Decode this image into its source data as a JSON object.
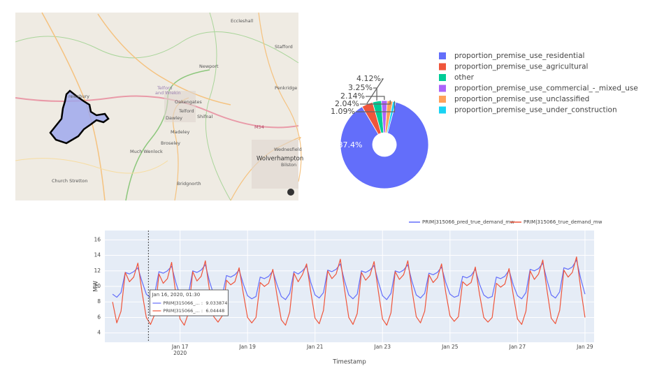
{
  "map": {
    "places": [
      "Eccleshall",
      "Stafford",
      "Newport",
      "Telford",
      "and Wrekin",
      "Penkridge",
      "Oakengates",
      "Telford",
      "Shifnal",
      "Dawley",
      "Madeley",
      "M54",
      "Broseley",
      "Much Wenlock",
      "Wednesfield",
      "Wolverhampton",
      "Bilston",
      "Church Stretton",
      "Bridgnorth",
      "rewsbury"
    ]
  },
  "chart_data": [
    {
      "type": "pie",
      "labels": [
        "proportion_premise_use_residential",
        "proportion_premise_use_agricultural",
        "other",
        "proportion_premise_use_commercial_-_mixed_use",
        "proportion_premise_use_unclassified",
        "proportion_premise_use_under_construction"
      ],
      "values": [
        87.4,
        4.12,
        3.25,
        2.14,
        2.04,
        1.09
      ],
      "value_labels": [
        "87.4%",
        "4.12%",
        "3.25%",
        "2.14%",
        "2.04%",
        "1.09%"
      ],
      "colors": [
        "#636efa",
        "#ef553b",
        "#00cc96",
        "#ab63fa",
        "#ffa15a",
        "#19d3f3"
      ],
      "hole": true
    },
    {
      "type": "line",
      "x_label": "Timestamp",
      "y_label": "MW",
      "x": [
        "2020-01-15T00:00",
        "2020-01-15T03:00",
        "2020-01-15T06:00",
        "2020-01-15T09:00",
        "2020-01-15T12:00",
        "2020-01-15T15:00",
        "2020-01-15T18:00",
        "2020-01-15T21:00",
        "2020-01-16T00:00",
        "2020-01-16T03:00",
        "2020-01-16T06:00",
        "2020-01-16T09:00",
        "2020-01-16T12:00",
        "2020-01-16T15:00",
        "2020-01-16T18:00",
        "2020-01-16T21:00",
        "2020-01-17T00:00",
        "2020-01-17T03:00",
        "2020-01-17T06:00",
        "2020-01-17T09:00",
        "2020-01-17T12:00",
        "2020-01-17T15:00",
        "2020-01-17T18:00",
        "2020-01-17T21:00",
        "2020-01-18T00:00",
        "2020-01-18T03:00",
        "2020-01-18T06:00",
        "2020-01-18T09:00",
        "2020-01-18T12:00",
        "2020-01-18T15:00",
        "2020-01-18T18:00",
        "2020-01-18T21:00",
        "2020-01-19T00:00",
        "2020-01-19T03:00",
        "2020-01-19T06:00",
        "2020-01-19T09:00",
        "2020-01-19T12:00",
        "2020-01-19T15:00",
        "2020-01-19T18:00",
        "2020-01-19T21:00",
        "2020-01-20T00:00",
        "2020-01-20T03:00",
        "2020-01-20T06:00",
        "2020-01-20T09:00",
        "2020-01-20T12:00",
        "2020-01-20T15:00",
        "2020-01-20T18:00",
        "2020-01-20T21:00",
        "2020-01-21T00:00",
        "2020-01-21T03:00",
        "2020-01-21T06:00",
        "2020-01-21T09:00",
        "2020-01-21T12:00",
        "2020-01-21T15:00",
        "2020-01-21T18:00",
        "2020-01-21T21:00",
        "2020-01-22T00:00",
        "2020-01-22T03:00",
        "2020-01-22T06:00",
        "2020-01-22T09:00",
        "2020-01-22T12:00",
        "2020-01-22T15:00",
        "2020-01-22T18:00",
        "2020-01-22T21:00",
        "2020-01-23T00:00",
        "2020-01-23T03:00",
        "2020-01-23T06:00",
        "2020-01-23T09:00",
        "2020-01-23T12:00",
        "2020-01-23T15:00",
        "2020-01-23T18:00",
        "2020-01-23T21:00",
        "2020-01-24T00:00",
        "2020-01-24T03:00",
        "2020-01-24T06:00",
        "2020-01-24T09:00",
        "2020-01-24T12:00",
        "2020-01-24T15:00",
        "2020-01-24T18:00",
        "2020-01-24T21:00",
        "2020-01-25T00:00",
        "2020-01-25T03:00",
        "2020-01-25T06:00",
        "2020-01-25T09:00",
        "2020-01-25T12:00",
        "2020-01-25T15:00",
        "2020-01-25T18:00",
        "2020-01-25T21:00",
        "2020-01-26T00:00",
        "2020-01-26T03:00",
        "2020-01-26T06:00",
        "2020-01-26T09:00",
        "2020-01-26T12:00",
        "2020-01-26T15:00",
        "2020-01-26T18:00",
        "2020-01-26T21:00",
        "2020-01-27T00:00",
        "2020-01-27T03:00",
        "2020-01-27T06:00",
        "2020-01-27T09:00",
        "2020-01-27T12:00",
        "2020-01-27T15:00",
        "2020-01-27T18:00",
        "2020-01-27T21:00",
        "2020-01-28T00:00",
        "2020-01-28T03:00",
        "2020-01-28T06:00",
        "2020-01-28T09:00",
        "2020-01-28T12:00",
        "2020-01-28T15:00",
        "2020-01-28T18:00",
        "2020-01-28T21:00",
        "2020-01-29T00:00"
      ],
      "series": [
        {
          "name": "PRIM|315066_pred_true_demand_mw",
          "color": "#636efa",
          "values": [
            9.0,
            8.6,
            9.2,
            11.8,
            11.6,
            11.9,
            12.4,
            10.6,
            9.0,
            8.5,
            9.1,
            11.9,
            11.7,
            12.0,
            12.6,
            10.5,
            8.8,
            8.4,
            9.0,
            12.0,
            11.8,
            12.1,
            12.8,
            10.6,
            8.9,
            8.5,
            8.8,
            11.4,
            11.2,
            11.5,
            12.1,
            10.3,
            8.8,
            8.4,
            8.7,
            11.2,
            11.0,
            11.3,
            12.0,
            10.2,
            8.7,
            8.3,
            9.1,
            11.9,
            11.6,
            12.0,
            12.6,
            10.5,
            8.9,
            8.5,
            9.2,
            12.1,
            11.9,
            12.2,
            12.9,
            10.7,
            8.9,
            8.4,
            9.0,
            12.0,
            11.8,
            12.1,
            12.7,
            10.6,
            8.8,
            8.3,
            9.1,
            12.0,
            11.8,
            12.1,
            12.8,
            10.6,
            8.9,
            8.5,
            9.1,
            11.7,
            11.5,
            11.8,
            12.5,
            10.5,
            9.0,
            8.6,
            8.8,
            11.3,
            11.1,
            11.4,
            12.2,
            10.3,
            8.9,
            8.5,
            8.7,
            11.2,
            11.0,
            11.3,
            12.1,
            10.2,
            8.8,
            8.4,
            9.2,
            12.2,
            12.0,
            12.3,
            13.0,
            10.8,
            8.9,
            8.5,
            9.3,
            12.4,
            12.2,
            12.5,
            13.4,
            11.0,
            9.0
          ]
        },
        {
          "name": "PRIM|315066_true_demand_mw",
          "color": "#ef553b",
          "values": [
            8.0,
            5.3,
            6.8,
            11.8,
            10.6,
            11.2,
            13.0,
            9.2,
            6.0,
            5.1,
            6.4,
            11.6,
            10.4,
            11.0,
            13.1,
            9.0,
            5.8,
            5.0,
            6.6,
            11.9,
            10.7,
            11.3,
            13.3,
            9.4,
            6.1,
            5.4,
            6.2,
            10.8,
            10.2,
            10.6,
            12.4,
            9.1,
            6.0,
            5.3,
            6.0,
            10.5,
            10.0,
            10.4,
            12.2,
            8.8,
            5.7,
            5.0,
            6.7,
            11.7,
            10.6,
            11.5,
            12.9,
            9.3,
            5.9,
            5.2,
            6.9,
            12.0,
            11.0,
            11.6,
            13.5,
            9.6,
            6.0,
            5.1,
            6.5,
            11.8,
            10.8,
            11.4,
            13.2,
            9.4,
            5.8,
            5.0,
            6.6,
            11.9,
            10.9,
            11.5,
            13.3,
            9.5,
            6.1,
            5.3,
            6.8,
            11.5,
            10.5,
            11.1,
            12.9,
            9.2,
            6.2,
            5.5,
            6.1,
            10.6,
            10.1,
            10.5,
            12.5,
            9.0,
            6.0,
            5.4,
            6.0,
            10.4,
            9.9,
            10.3,
            12.3,
            8.9,
            5.8,
            5.1,
            6.8,
            12.0,
            10.9,
            11.6,
            13.4,
            9.5,
            5.9,
            5.2,
            6.9,
            12.1,
            11.2,
            11.8,
            13.8,
            9.7,
            6.0
          ]
        }
      ],
      "xlim": [
        "2020-01-14T18:30",
        "2020-01-29T06:30"
      ],
      "xticks": [
        {
          "value": "2020-01-17T00:00",
          "label": "Jan 17",
          "sublabel": "2020"
        },
        {
          "value": "2020-01-19T00:00",
          "label": "Jan 19"
        },
        {
          "value": "2020-01-21T00:00",
          "label": "Jan 21"
        },
        {
          "value": "2020-01-23T00:00",
          "label": "Jan 23"
        },
        {
          "value": "2020-01-25T00:00",
          "label": "Jan 25"
        },
        {
          "value": "2020-01-27T00:00",
          "label": "Jan 27"
        },
        {
          "value": "2020-01-29T00:00",
          "label": "Jan 29"
        }
      ],
      "ylim": [
        2.8,
        17.2
      ],
      "yticks": [
        4,
        6,
        8,
        10,
        12,
        14,
        16
      ],
      "grid": true,
      "hover": {
        "x": "2020-01-16T01:30",
        "title": "Jan 16, 2020, 01:30",
        "items": [
          {
            "label": "PRIM|315066_... :",
            "value": 9.033874
          },
          {
            "label": "PRIM|315066_... :",
            "value": 6.04448
          }
        ]
      }
    }
  ]
}
